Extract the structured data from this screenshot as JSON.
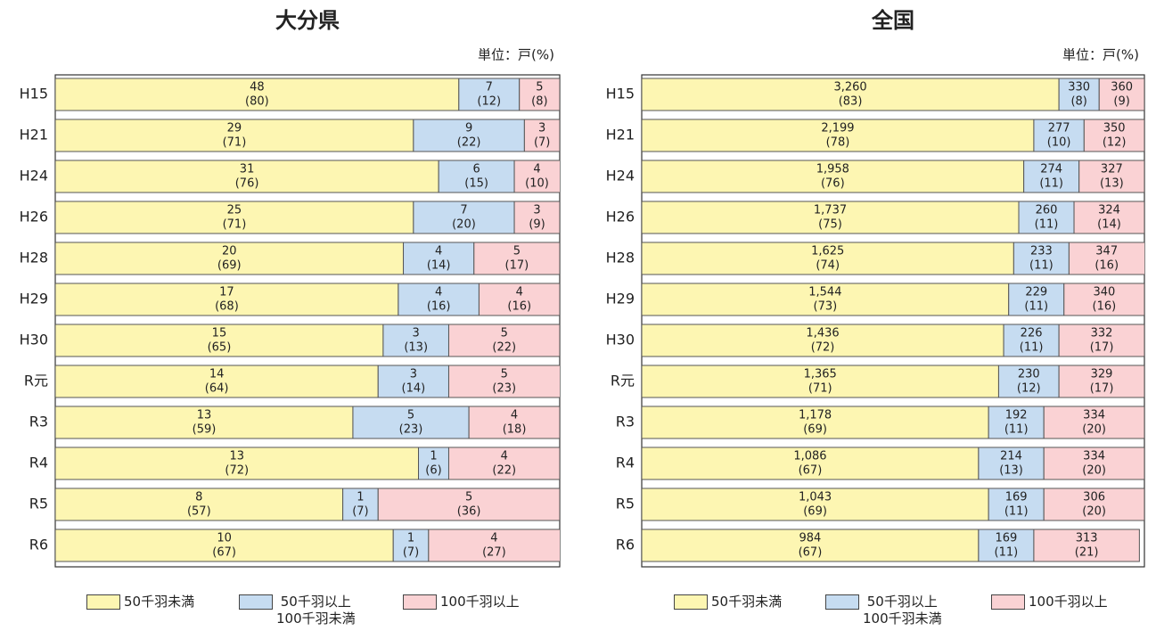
{
  "chart_data": [
    {
      "type": "bar",
      "orientation": "horizontal",
      "stacked": true,
      "title": "大分県",
      "unit_note": "単位：戸(%)",
      "categories": [
        "H15",
        "H21",
        "H24",
        "H26",
        "H28",
        "H29",
        "H30",
        "R元",
        "R3",
        "R4",
        "R5",
        "R6"
      ],
      "xlim": [
        0,
        100
      ],
      "series": [
        {
          "name": "50千羽未満",
          "color": "#fdf6b2",
          "values": [
            80,
            71,
            76,
            71,
            69,
            68,
            65,
            64,
            59,
            72,
            57,
            67
          ],
          "value_labels": [
            "(80)",
            "(71)",
            "(76)",
            "(71)",
            "(69)",
            "(68)",
            "(65)",
            "(64)",
            "(59)",
            "(72)",
            "(57)",
            "(67)"
          ],
          "counts": [
            48,
            29,
            31,
            25,
            20,
            17,
            15,
            14,
            13,
            13,
            8,
            10
          ]
        },
        {
          "name": "50千羽以上\n100千羽未満",
          "color": "#c6dcf1",
          "values": [
            12,
            22,
            15,
            20,
            14,
            16,
            13,
            14,
            23,
            6,
            7,
            7
          ],
          "value_labels": [
            "(12)",
            "(22)",
            "(15)",
            "(20)",
            "(14)",
            "(16)",
            "(13)",
            "(14)",
            "(23)",
            "(6)",
            "(7)",
            "(7)"
          ],
          "counts": [
            7,
            9,
            6,
            7,
            4,
            4,
            3,
            3,
            5,
            1,
            1,
            1
          ]
        },
        {
          "name": "100千羽以上",
          "color": "#fad2d4",
          "values": [
            8,
            7,
            10,
            9,
            17,
            16,
            22,
            23,
            18,
            22,
            36,
            27
          ],
          "value_labels": [
            "(8)",
            "(7)",
            "(10)",
            "(9)",
            "(17)",
            "(16)",
            "(22)",
            "(23)",
            "(18)",
            "(22)",
            "(36)",
            "(27)"
          ],
          "counts": [
            5,
            3,
            4,
            3,
            5,
            4,
            5,
            5,
            4,
            4,
            5,
            4
          ]
        }
      ]
    },
    {
      "type": "bar",
      "orientation": "horizontal",
      "stacked": true,
      "title": "全国",
      "unit_note": "単位：戸(%)",
      "categories": [
        "H15",
        "H21",
        "H24",
        "H26",
        "H28",
        "H29",
        "H30",
        "R元",
        "R3",
        "R4",
        "R5",
        "R6"
      ],
      "xlim": [
        0,
        100
      ],
      "series": [
        {
          "name": "50千羽未満",
          "color": "#fdf6b2",
          "values": [
            83,
            78,
            76,
            75,
            74,
            73,
            72,
            71,
            69,
            67,
            69,
            67
          ],
          "value_labels": [
            "(83)",
            "(78)",
            "(76)",
            "(75)",
            "(74)",
            "(73)",
            "(72)",
            "(71)",
            "(69)",
            "(67)",
            "(69)",
            "(67)"
          ],
          "counts": [
            3260,
            2199,
            1958,
            1737,
            1625,
            1544,
            1436,
            1365,
            1178,
            1086,
            1043,
            984
          ],
          "count_labels": [
            "3,260",
            "2,199",
            "1,958",
            "1,737",
            "1,625",
            "1,544",
            "1,436",
            "1,365",
            "1,178",
            "1,086",
            "1,043",
            "984"
          ]
        },
        {
          "name": "50千羽以上\n100千羽未満",
          "color": "#c6dcf1",
          "values": [
            8,
            10,
            11,
            11,
            11,
            11,
            11,
            12,
            11,
            13,
            11,
            11
          ],
          "value_labels": [
            "(8)",
            "(10)",
            "(11)",
            "(11)",
            "(11)",
            "(11)",
            "(11)",
            "(12)",
            "(11)",
            "(13)",
            "(11)",
            "(11)"
          ],
          "counts": [
            330,
            277,
            274,
            260,
            233,
            229,
            226,
            230,
            192,
            214,
            169,
            169
          ]
        },
        {
          "name": "100千羽以上",
          "color": "#fad2d4",
          "values": [
            9,
            12,
            13,
            14,
            16,
            16,
            17,
            17,
            20,
            20,
            20,
            21
          ],
          "value_labels": [
            "(9)",
            "(12)",
            "(13)",
            "(14)",
            "(16)",
            "(16)",
            "(17)",
            "(17)",
            "(20)",
            "(20)",
            "(20)",
            "(21)"
          ],
          "counts": [
            360,
            350,
            327,
            324,
            347,
            340,
            332,
            329,
            334,
            334,
            306,
            313
          ]
        }
      ]
    }
  ]
}
